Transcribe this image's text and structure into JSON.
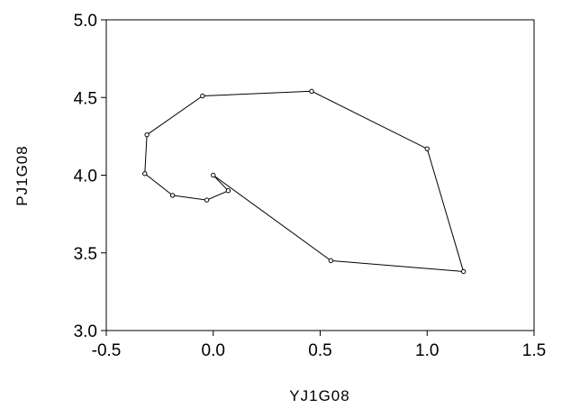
{
  "chart_data": {
    "type": "line",
    "xlabel": "YJ1G08",
    "ylabel": "PJ1G08",
    "xlim": [
      -0.5,
      1.5
    ],
    "ylim": [
      3.0,
      5.0
    ],
    "x_ticks": [
      -0.5,
      0.0,
      0.5,
      1.0,
      1.5
    ],
    "y_ticks": [
      3.0,
      3.5,
      4.0,
      4.5,
      5.0
    ],
    "x_tick_labels": [
      "-0.5",
      "0.0",
      "0.5",
      "1.0",
      "1.5"
    ],
    "y_tick_labels": [
      "3.0",
      "3.5",
      "4.0",
      "4.5",
      "5.0"
    ],
    "grid": false,
    "series": [
      {
        "x": [
          0.0,
          0.07,
          -0.03,
          -0.19,
          -0.32,
          -0.31,
          -0.05,
          0.46,
          1.0,
          1.17,
          0.55,
          0.0
        ],
        "y": [
          4.0,
          3.9,
          3.84,
          3.87,
          4.01,
          4.26,
          4.51,
          4.54,
          4.17,
          3.38,
          3.45,
          4.0
        ],
        "marker": "open-circle",
        "color": "#000000"
      }
    ]
  }
}
